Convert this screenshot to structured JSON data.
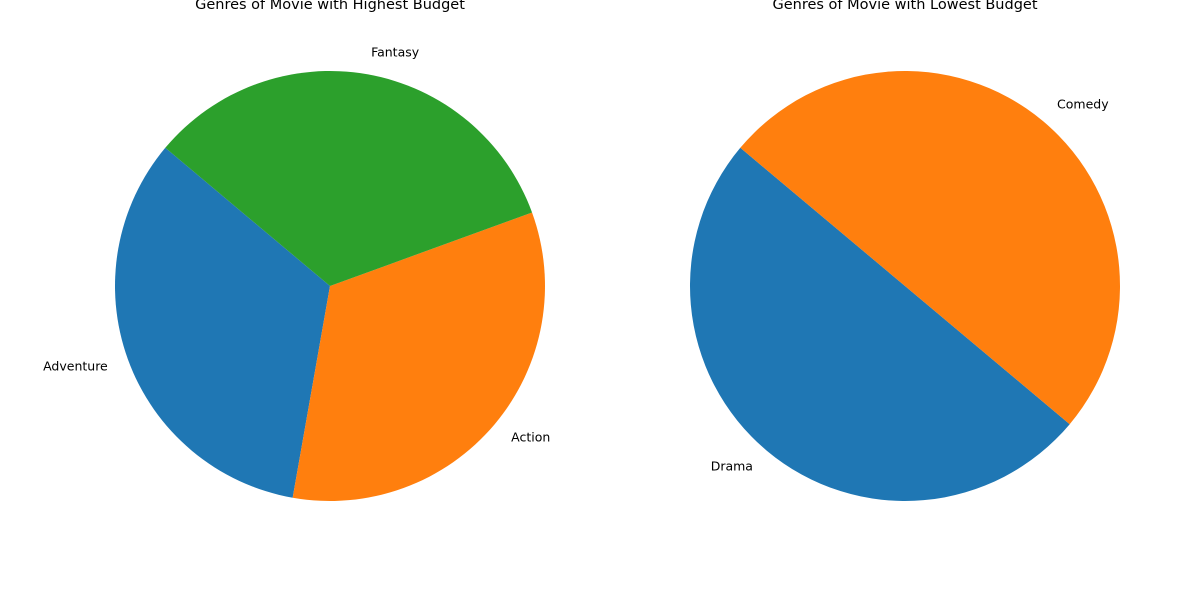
{
  "chart_data": [
    {
      "type": "pie",
      "title": "Genres of Movie with Highest Budget",
      "start_angle_deg": 140,
      "direction": "counterclockwise",
      "slices": [
        {
          "label": "Adventure",
          "value": 1,
          "color": "#1f77b4"
        },
        {
          "label": "Action",
          "value": 1,
          "color": "#ff7f0e"
        },
        {
          "label": "Fantasy",
          "value": 1,
          "color": "#2ca02c"
        }
      ]
    },
    {
      "type": "pie",
      "title": "Genres of Movie with Lowest Budget",
      "start_angle_deg": 140,
      "direction": "counterclockwise",
      "slices": [
        {
          "label": "Drama",
          "value": 1,
          "color": "#1f77b4"
        },
        {
          "label": "Comedy",
          "value": 1,
          "color": "#ff7f0e"
        }
      ]
    }
  ]
}
